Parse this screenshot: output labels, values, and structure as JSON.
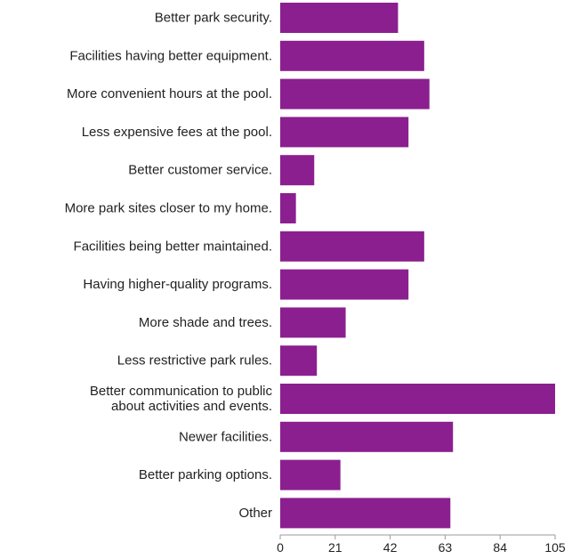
{
  "chart_data": {
    "type": "bar",
    "orientation": "horizontal",
    "title": "",
    "xlabel": "",
    "ylabel": "",
    "categories": [
      [
        "Better park security."
      ],
      [
        "Facilities having better equipment."
      ],
      [
        "More convenient hours at the pool."
      ],
      [
        "Less expensive fees at the pool."
      ],
      [
        "Better customer service."
      ],
      [
        "More park sites closer to my home."
      ],
      [
        "Facilities being better maintained."
      ],
      [
        "Having higher-quality programs."
      ],
      [
        "More shade and trees."
      ],
      [
        "Less restrictive park rules."
      ],
      [
        "Better communication to public",
        "about activities and events."
      ],
      [
        "Newer facilities."
      ],
      [
        "Better parking options."
      ],
      [
        "Other"
      ]
    ],
    "values": [
      45,
      55,
      57,
      49,
      13,
      6,
      55,
      49,
      25,
      14,
      105,
      66,
      23,
      65
    ],
    "xlim": [
      0,
      105
    ],
    "xticks": [
      "0",
      "21",
      "42",
      "63",
      "84",
      "105"
    ],
    "grid": false,
    "legend": "none",
    "colors": {
      "bar": "#8B1F8F",
      "axis": "#9a9a9a",
      "text": "#222222"
    }
  }
}
